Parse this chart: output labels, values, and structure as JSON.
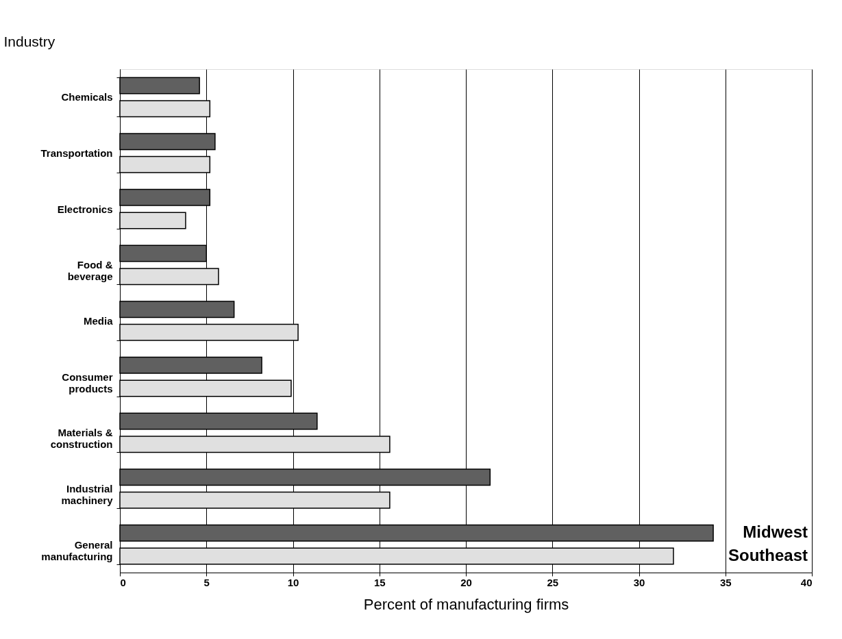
{
  "chart_data": {
    "type": "bar",
    "orientation": "horizontal",
    "xlabel": "Percent of manufacturing firms",
    "ylabel": "Industry",
    "categories": [
      "Chemicals",
      "Transportation",
      "Electronics",
      "Food &\nbeverage",
      "Media",
      "Consumer\nproducts",
      "Materials &\nconstruction",
      "Industrial\nmachinery",
      "General\nmanufacturing"
    ],
    "series": [
      {
        "name": "Midwest",
        "color": "#606060",
        "values": [
          4.6,
          5.5,
          5.2,
          5.0,
          6.6,
          8.2,
          11.4,
          21.4,
          34.3
        ]
      },
      {
        "name": "Southeast",
        "color": "#e0e0e0",
        "values": [
          5.2,
          5.2,
          3.8,
          5.7,
          10.3,
          9.9,
          15.6,
          15.6,
          32.0
        ]
      }
    ],
    "xlim": [
      0,
      40
    ],
    "xticks": [
      0,
      5,
      10,
      15,
      20,
      25,
      30,
      35,
      40
    ],
    "grid": "x",
    "legend": false
  }
}
